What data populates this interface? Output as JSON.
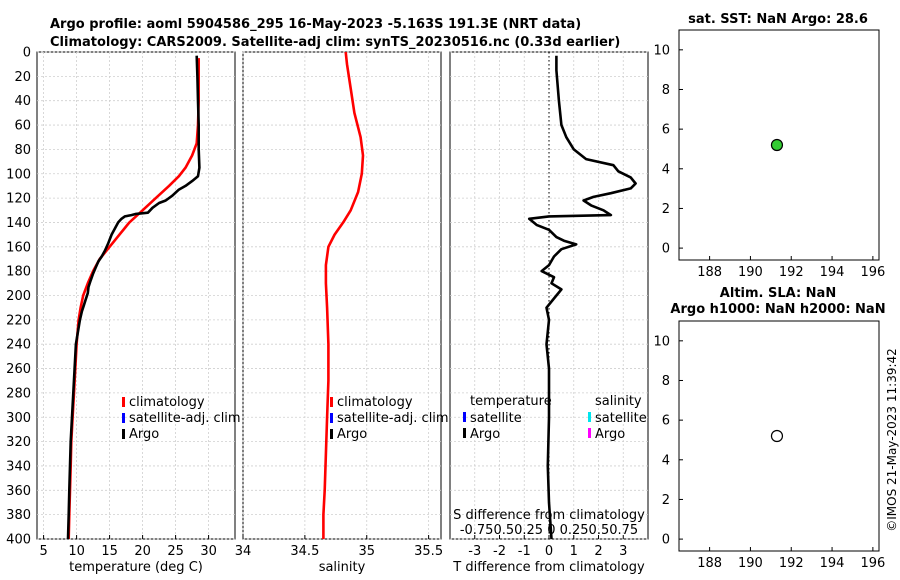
{
  "header": {
    "line1": "Argo profile: aoml 5904586_295 16-May-2023 -5.163S 191.3E (NRT data)",
    "line2": "Climatology: CARS2009. Satellite-adj clim: synTS_20230516.nc (0.33d earlier)"
  },
  "watermark": "©IMOS 21-May-2023 11:39:42",
  "colors": {
    "climatology": "#ff0000",
    "satellite": "#0000ff",
    "argo": "#000000",
    "sat_salinity": "#00e5ee",
    "argo_salinity": "#ff00ff",
    "sst_marker": "#33cc33"
  },
  "chart_data": [
    {
      "id": "temperature",
      "type": "line",
      "xlabel": "temperature (deg C)",
      "ylim": [
        0,
        400
      ],
      "xlim": [
        4,
        34
      ],
      "xticks": [
        5,
        10,
        15,
        20,
        25,
        30
      ],
      "yticks": [
        0,
        20,
        40,
        60,
        80,
        100,
        120,
        140,
        160,
        180,
        200,
        220,
        240,
        260,
        280,
        300,
        320,
        340,
        360,
        380,
        400
      ],
      "legend": [
        "climatology",
        "satellite-adj. clim",
        "Argo"
      ],
      "series": [
        {
          "name": "climatology",
          "color": "#ff0000",
          "points": [
            [
              28.5,
              5
            ],
            [
              28.5,
              20
            ],
            [
              28.5,
              40
            ],
            [
              28.4,
              60
            ],
            [
              28.2,
              75
            ],
            [
              27.5,
              85
            ],
            [
              26.5,
              95
            ],
            [
              25.5,
              102
            ],
            [
              24,
              110
            ],
            [
              22,
              120
            ],
            [
              20,
              130
            ],
            [
              18,
              140
            ],
            [
              16.5,
              150
            ],
            [
              15,
              160
            ],
            [
              13.5,
              170
            ],
            [
              12.5,
              180
            ],
            [
              11.7,
              190
            ],
            [
              11,
              200
            ],
            [
              10.6,
              210
            ],
            [
              10.3,
              220
            ],
            [
              10,
              240
            ],
            [
              9.8,
              260
            ],
            [
              9.6,
              280
            ],
            [
              9.4,
              300
            ],
            [
              9.2,
              320
            ],
            [
              9.1,
              340
            ],
            [
              9,
              360
            ],
            [
              8.9,
              380
            ],
            [
              8.8,
              400
            ]
          ]
        },
        {
          "name": "Argo",
          "color": "#000000",
          "points": [
            [
              28.2,
              3
            ],
            [
              28.3,
              20
            ],
            [
              28.4,
              40
            ],
            [
              28.5,
              60
            ],
            [
              28.5,
              80
            ],
            [
              28.6,
              95
            ],
            [
              28.4,
              102
            ],
            [
              27.5,
              106
            ],
            [
              26.5,
              110
            ],
            [
              25.5,
              113
            ],
            [
              24.5,
              118
            ],
            [
              23.5,
              122
            ],
            [
              22.5,
              124
            ],
            [
              21.5,
              128
            ],
            [
              20.8,
              132
            ],
            [
              19,
              133
            ],
            [
              18.3,
              134
            ],
            [
              17.3,
              135
            ],
            [
              16.8,
              137
            ],
            [
              16.3,
              140
            ],
            [
              15.8,
              145
            ],
            [
              15.3,
              150
            ],
            [
              14.8,
              157
            ],
            [
              14.3,
              163
            ],
            [
              13.8,
              168
            ],
            [
              13.3,
              172
            ],
            [
              12.9,
              177
            ],
            [
              12.5,
              182
            ],
            [
              12.1,
              188
            ],
            [
              11.8,
              193
            ],
            [
              11.7,
              198
            ],
            [
              11.4,
              203
            ],
            [
              11.1,
              208
            ],
            [
              10.8,
              213
            ],
            [
              10.5,
              220
            ],
            [
              10.2,
              230
            ],
            [
              9.9,
              240
            ],
            [
              9.7,
              260
            ],
            [
              9.5,
              280
            ],
            [
              9.3,
              300
            ],
            [
              9.1,
              320
            ],
            [
              9,
              340
            ],
            [
              8.9,
              360
            ],
            [
              8.8,
              380
            ],
            [
              8.7,
              400
            ]
          ]
        }
      ]
    },
    {
      "id": "salinity",
      "type": "line",
      "xlabel": "salinity",
      "ylim": [
        0,
        400
      ],
      "xlim": [
        34,
        35.6
      ],
      "xticks": [
        34,
        34.5,
        35,
        35.5
      ],
      "legend": [
        "climatology",
        "satellite-adj. clim",
        "Argo"
      ],
      "series": [
        {
          "name": "climatology",
          "color": "#ff0000",
          "points": [
            [
              34.83,
              0
            ],
            [
              34.84,
              10
            ],
            [
              34.87,
              30
            ],
            [
              34.9,
              50
            ],
            [
              34.95,
              70
            ],
            [
              34.97,
              85
            ],
            [
              34.96,
              100
            ],
            [
              34.93,
              115
            ],
            [
              34.87,
              130
            ],
            [
              34.81,
              140
            ],
            [
              34.74,
              150
            ],
            [
              34.69,
              160
            ],
            [
              34.67,
              175
            ],
            [
              34.67,
              190
            ],
            [
              34.68,
              210
            ],
            [
              34.69,
              240
            ],
            [
              34.69,
              270
            ],
            [
              34.68,
              300
            ],
            [
              34.67,
              330
            ],
            [
              34.66,
              360
            ],
            [
              34.65,
              380
            ],
            [
              34.65,
              400
            ]
          ]
        }
      ]
    },
    {
      "id": "difference",
      "type": "line",
      "xlabel": "T difference from climatology",
      "xlabel_top": "S difference from climatology",
      "top_ticks": "-0.750.50.25 0 0.250.50.75",
      "ylim": [
        0,
        400
      ],
      "xlim": [
        -4,
        4
      ],
      "xticks": [
        -3,
        -2,
        -1,
        0,
        1,
        2,
        3
      ],
      "legend_groups": [
        "temperature",
        "salinity"
      ],
      "legend": [
        "satellite",
        "Argo",
        "satellite",
        "Argo"
      ],
      "series": [
        {
          "name": "Argo T difference",
          "color": "#000000",
          "points": [
            [
              0.3,
              3
            ],
            [
              0.3,
              15
            ],
            [
              0.4,
              40
            ],
            [
              0.5,
              60
            ],
            [
              0.7,
              70
            ],
            [
              1,
              80
            ],
            [
              1.5,
              88
            ],
            [
              2.6,
              93
            ],
            [
              2.8,
              98
            ],
            [
              3.3,
              103
            ],
            [
              3.5,
              108
            ],
            [
              3.3,
              112
            ],
            [
              2.5,
              116
            ],
            [
              1.8,
              119
            ],
            [
              1.4,
              122
            ],
            [
              1.7,
              126
            ],
            [
              2.2,
              130
            ],
            [
              2.5,
              134
            ],
            [
              0,
              135
            ],
            [
              -0.8,
              137
            ],
            [
              -0.5,
              142
            ],
            [
              0,
              146
            ],
            [
              0.3,
              152
            ],
            [
              0.6,
              155
            ],
            [
              1.1,
              158
            ],
            [
              0.5,
              162
            ],
            [
              0.2,
              168
            ],
            [
              0,
              175
            ],
            [
              -0.3,
              180
            ],
            [
              0.2,
              185
            ],
            [
              0.1,
              190
            ],
            [
              0.5,
              195
            ],
            [
              0.3,
              200
            ],
            [
              -0.1,
              210
            ],
            [
              0,
              220
            ],
            [
              -0.1,
              240
            ],
            [
              0,
              260
            ],
            [
              0,
              300
            ],
            [
              -0.05,
              340
            ],
            [
              0,
              370
            ],
            [
              0.1,
              400
            ]
          ]
        }
      ]
    },
    {
      "id": "sst",
      "type": "scatter",
      "title": "sat. SST: NaN Argo: 28.6",
      "xlim": [
        186.5,
        196.3
      ],
      "ylim": [
        -0.6,
        11
      ],
      "xticks": [
        188,
        190,
        192,
        194,
        196
      ],
      "yticks": [
        0,
        2,
        4,
        6,
        8,
        10
      ],
      "points": [
        [
          191.3,
          5.2
        ]
      ],
      "marker": "filled-green"
    },
    {
      "id": "sla",
      "type": "scatter",
      "title": "Altim. SLA: NaN",
      "title2": "Argo h1000: NaN h2000: NaN",
      "xlim": [
        186.5,
        196.3
      ],
      "ylim": [
        -0.6,
        11
      ],
      "xticks": [
        188,
        190,
        192,
        194,
        196
      ],
      "yticks": [
        0,
        2,
        4,
        6,
        8,
        10
      ],
      "points": [
        [
          191.3,
          5.2
        ]
      ],
      "marker": "open-white"
    }
  ]
}
